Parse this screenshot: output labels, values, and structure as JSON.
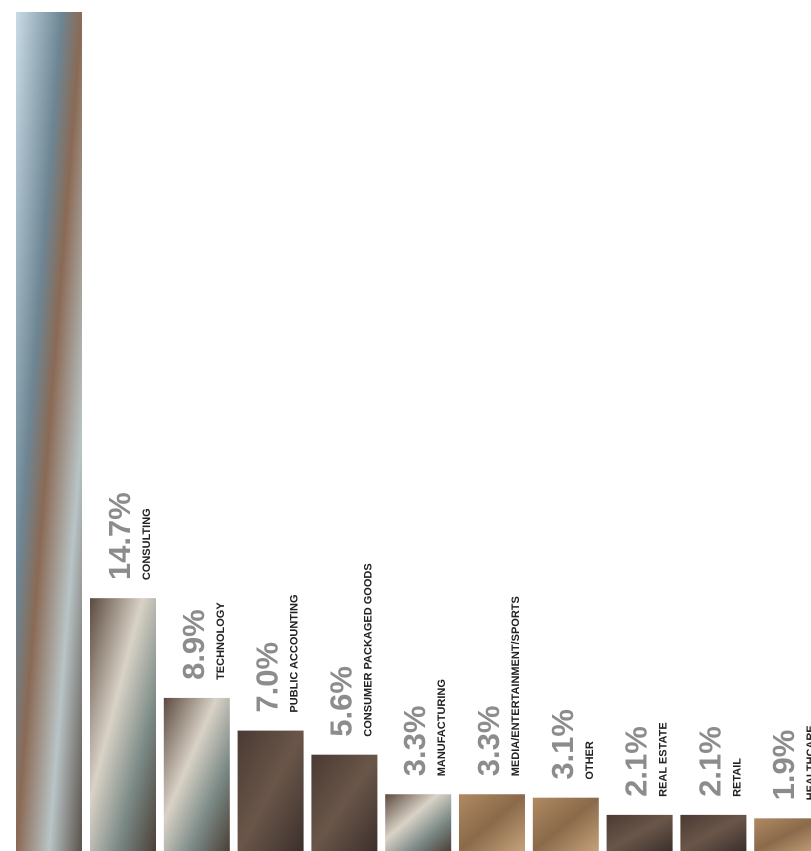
{
  "chart_data": {
    "type": "bar",
    "categories": [
      "CONSULTING",
      "TECHNOLOGY",
      "PUBLIC ACCOUNTING",
      "CONSUMER PACKAGED GOODS",
      "MANUFACTURING",
      "MEDIA/ENTERTAINMENT/SPORTS",
      "OTHER",
      "REAL ESTATE",
      "RETAIL",
      "HEALTHCARE"
    ],
    "values": [
      14.7,
      8.9,
      7.0,
      5.6,
      3.3,
      3.3,
      3.1,
      2.1,
      2.1,
      1.9
    ],
    "value_labels": [
      "14.7%",
      "8.9%",
      "7.0%",
      "5.6%",
      "3.3%",
      "3.3%",
      "3.1%",
      "2.1%",
      "2.1%",
      "1.9%"
    ]
  }
}
